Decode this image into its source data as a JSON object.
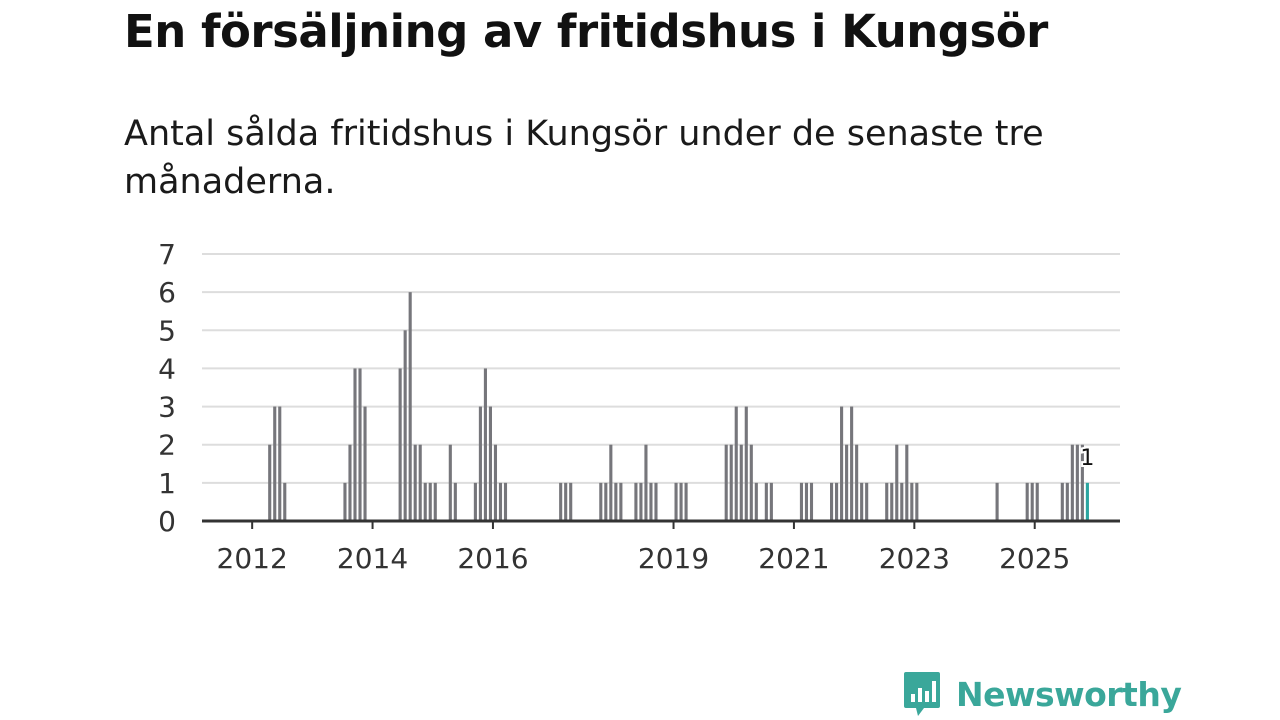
{
  "title": "En försäljning av fritidshus i Kungsör",
  "subtitle": "Antal sålda fritidshus i Kungsör under de senaste tre månaderna.",
  "brand": {
    "name": "Newsworthy",
    "color": "#3aa79a",
    "icon": "bar-chart-speech-bubble-icon"
  },
  "colors": {
    "bar": "#76767b",
    "highlight": "#2ba5a0",
    "grid": "#dddddd",
    "axis": "#333333"
  },
  "chart_data": {
    "type": "bar",
    "x_axis": "date",
    "x_ticks": [
      "2012",
      "2014",
      "2016",
      "2019",
      "2021",
      "2023",
      "2025"
    ],
    "y_ticks": [
      0,
      1,
      2,
      3,
      4,
      5,
      6,
      7
    ],
    "ylim": [
      0,
      7
    ],
    "xlim": [
      "2011-03",
      "2026-06"
    ],
    "grid": true,
    "highlight": {
      "x": "2025-11",
      "value": 1,
      "label": "1"
    },
    "series": [
      {
        "x": [
          "2012-04",
          "2012-05",
          "2012-06",
          "2012-07",
          "2013-07",
          "2013-08",
          "2013-09",
          "2013-10",
          "2013-11",
          "2014-06",
          "2014-07",
          "2014-08",
          "2014-09",
          "2014-10",
          "2014-11",
          "2014-12",
          "2015-01",
          "2015-04",
          "2015-05",
          "2015-09",
          "2015-10",
          "2015-11",
          "2015-12",
          "2016-01",
          "2016-02",
          "2016-03",
          "2017-02",
          "2017-03",
          "2017-04",
          "2017-10",
          "2017-11",
          "2017-12",
          "2018-01",
          "2018-02",
          "2018-05",
          "2018-06",
          "2018-07",
          "2018-08",
          "2018-09",
          "2019-01",
          "2019-02",
          "2019-03",
          "2019-11",
          "2019-12",
          "2020-01",
          "2020-02",
          "2020-03",
          "2020-04",
          "2020-05",
          "2020-07",
          "2020-08",
          "2021-02",
          "2021-03",
          "2021-04",
          "2021-08",
          "2021-09",
          "2021-10",
          "2021-11",
          "2021-12",
          "2022-01",
          "2022-02",
          "2022-03",
          "2022-07",
          "2022-08",
          "2022-09",
          "2022-10",
          "2022-11",
          "2022-12",
          "2023-01",
          "2024-05",
          "2024-11",
          "2024-12",
          "2025-01",
          "2025-06",
          "2025-07",
          "2025-08",
          "2025-09",
          "2025-10",
          "2025-11"
        ],
        "values": [
          2,
          3,
          3,
          1,
          1,
          2,
          4,
          4,
          3,
          4,
          5,
          6,
          2,
          2,
          1,
          1,
          1,
          2,
          1,
          1,
          3,
          4,
          3,
          2,
          1,
          1,
          1,
          1,
          1,
          1,
          1,
          2,
          1,
          1,
          1,
          1,
          2,
          1,
          1,
          1,
          1,
          1,
          2,
          2,
          3,
          2,
          3,
          2,
          1,
          1,
          1,
          1,
          1,
          1,
          1,
          1,
          3,
          2,
          3,
          2,
          1,
          1,
          1,
          1,
          2,
          1,
          2,
          1,
          1,
          1,
          1,
          1,
          1,
          1,
          1,
          2,
          2,
          2,
          1
        ]
      }
    ]
  }
}
